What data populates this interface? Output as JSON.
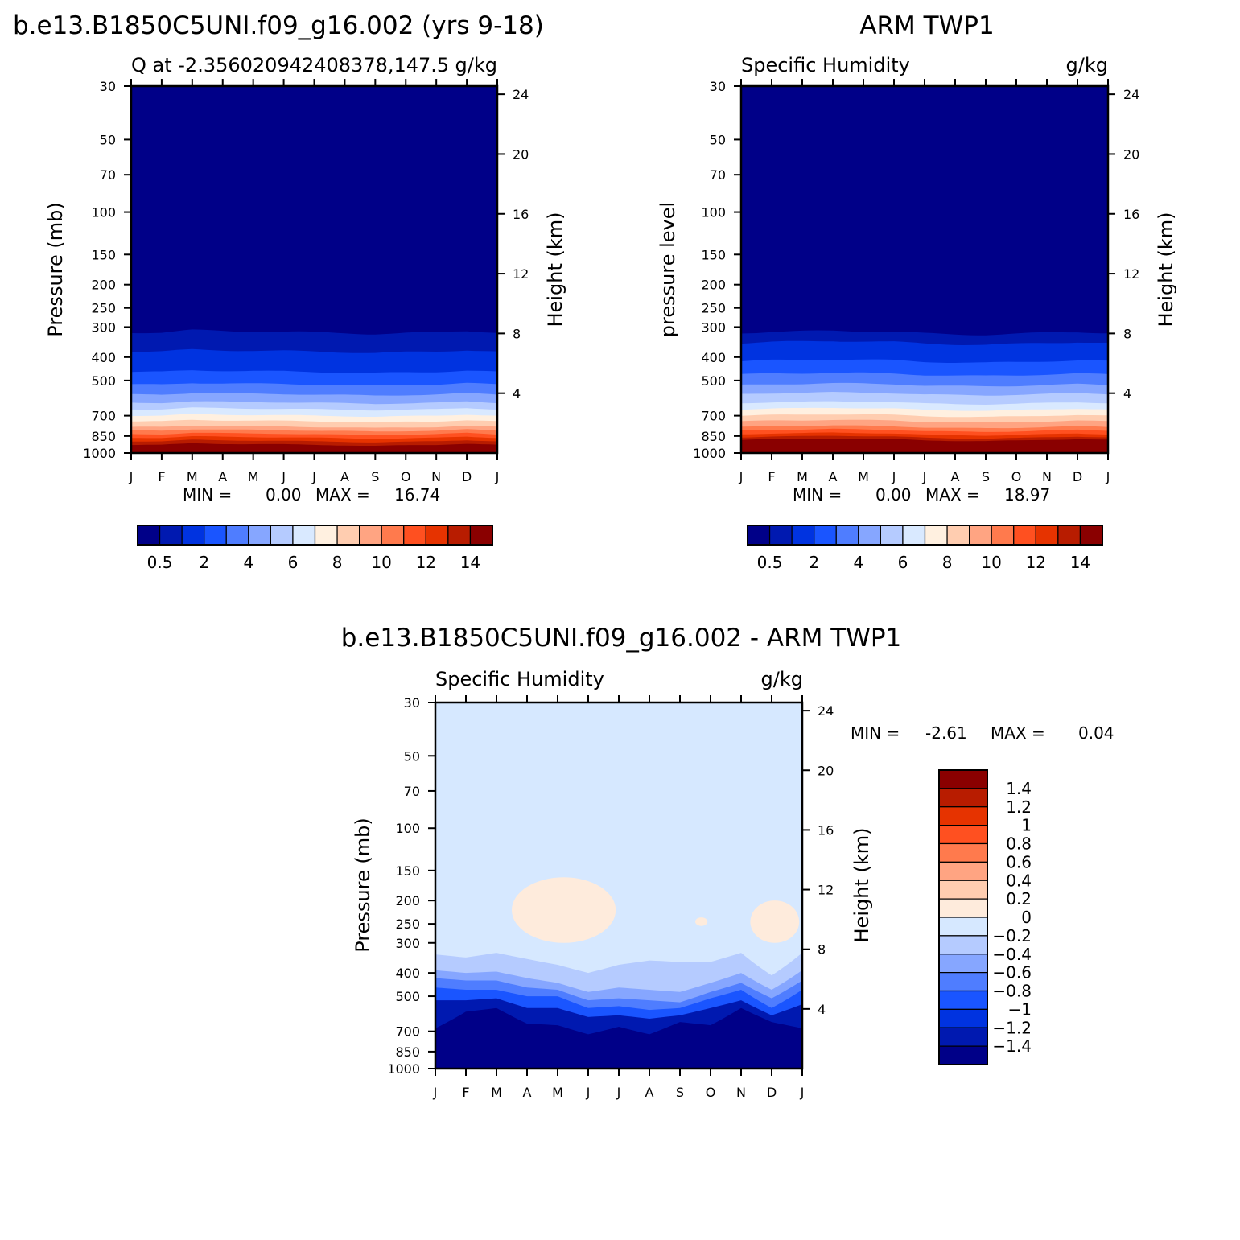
{
  "chart_data": [
    {
      "id": "p1",
      "type": "heatmap",
      "page_title": "b.e13.B1850C5UNI.f09_g16.002 (yrs 9-18)",
      "left_title": "Q at -2.356020942408378,147.5",
      "units": "g/kg",
      "ylabel": "Pressure (mb)",
      "right_ylabel": "Height (km)",
      "min_label": "MIN = ",
      "min_value": "0.00",
      "max_label": "MAX = ",
      "max_value": "16.74",
      "months": [
        "J",
        "F",
        "M",
        "A",
        "M",
        "J",
        "J",
        "A",
        "S",
        "O",
        "N",
        "D",
        "J"
      ],
      "pressure_ticks": [
        "30",
        "50",
        "70",
        "100",
        "150",
        "200",
        "250",
        "300",
        "400",
        "500",
        "700",
        "850",
        "1000"
      ],
      "height_ticks": [
        "24",
        "20",
        "16",
        "12",
        "8",
        "4"
      ],
      "top_mb": 30,
      "bottom_mb": 1000,
      "level_pressures_mb": [
        1000,
        925,
        850,
        780,
        700,
        600,
        500,
        430,
        400,
        350,
        300,
        250
      ],
      "level_values_gkg": [
        16.7,
        14.0,
        11.5,
        9.0,
        7.0,
        4.5,
        2.6,
        1.5,
        1.2,
        0.7,
        0.4,
        0.05
      ],
      "seasonal_offset_mb": [
        0,
        0,
        -6,
        -4,
        -3,
        -2,
        0,
        2,
        4,
        2,
        0,
        -5,
        0
      ],
      "levels": [
        0.1,
        0.5,
        1,
        2,
        3,
        4,
        5,
        6,
        7,
        8,
        9,
        10,
        11,
        12,
        13,
        14
      ],
      "colorbar_labels": [
        "0.5",
        "2",
        "4",
        "6",
        "8",
        "10",
        "12",
        "14"
      ]
    },
    {
      "id": "p2",
      "type": "heatmap",
      "page_title": "ARM TWP1",
      "left_title": "Specific Humidity",
      "units": "g/kg",
      "ylabel": "pressure level",
      "right_ylabel": "Height (km)",
      "min_label": "MIN = ",
      "min_value": "0.00",
      "max_label": "MAX = ",
      "max_value": "18.97",
      "months": [
        "J",
        "F",
        "M",
        "A",
        "M",
        "J",
        "J",
        "A",
        "S",
        "O",
        "N",
        "D",
        "J"
      ],
      "pressure_ticks": [
        "30",
        "50",
        "70",
        "100",
        "150",
        "200",
        "250",
        "300",
        "400",
        "500",
        "700",
        "850",
        "1000"
      ],
      "height_ticks": [
        "24",
        "20",
        "16",
        "12",
        "8",
        "4"
      ],
      "top_mb": 30,
      "bottom_mb": 1000,
      "level_pressures_mb": [
        1000,
        925,
        850,
        780,
        700,
        620,
        500,
        430,
        370,
        330,
        290
      ],
      "level_values_gkg": [
        19.0,
        16.0,
        12.5,
        10.0,
        8.0,
        6.0,
        3.5,
        2.2,
        1.3,
        0.7,
        0.05
      ],
      "seasonal_offset_mb": [
        0,
        -3,
        -4,
        -6,
        -5,
        -3,
        2,
        4,
        5,
        3,
        0,
        -3,
        0
      ],
      "levels": [
        0.1,
        0.5,
        1,
        2,
        3,
        4,
        5,
        6,
        7,
        8,
        9,
        10,
        11,
        12,
        13,
        14
      ],
      "colorbar_labels": [
        "0.5",
        "2",
        "4",
        "6",
        "8",
        "10",
        "12",
        "14"
      ]
    },
    {
      "id": "p3",
      "type": "heatmap",
      "page_title": "b.e13.B1850C5UNI.f09_g16.002 - ARM TWP1",
      "left_title": "Specific Humidity",
      "units": "g/kg",
      "ylabel": "Pressure (mb)",
      "right_ylabel": "Height (km)",
      "min_label": "MIN = ",
      "min_value": "-2.61",
      "max_label": "MAX = ",
      "max_value": "0.04",
      "months": [
        "J",
        "F",
        "M",
        "A",
        "M",
        "J",
        "J",
        "A",
        "S",
        "O",
        "N",
        "D",
        "J"
      ],
      "pressure_ticks": [
        "30",
        "50",
        "70",
        "100",
        "150",
        "200",
        "250",
        "300",
        "400",
        "500",
        "700",
        "850",
        "1000"
      ],
      "height_ticks": [
        "24",
        "20",
        "16",
        "12",
        "8",
        "4"
      ],
      "top_mb": 30,
      "bottom_mb": 1000,
      "boundaries_mb": {
        "neg_0_2_top": [
          335,
          345,
          330,
          350,
          370,
          400,
          370,
          355,
          360,
          360,
          330,
          410,
          330
        ],
        "neg_0_4_top": [
          390,
          400,
          395,
          420,
          440,
          480,
          460,
          470,
          480,
          440,
          400,
          470,
          390
        ],
        "neg_0_6_top": [
          420,
          430,
          430,
          460,
          470,
          520,
          510,
          520,
          530,
          480,
          440,
          510,
          430
        ],
        "neg_0_8_top": [
          460,
          470,
          470,
          500,
          500,
          560,
          550,
          570,
          560,
          510,
          470,
          560,
          470
        ],
        "neg_1_2_top": [
          520,
          520,
          510,
          560,
          560,
          610,
          600,
          620,
          600,
          560,
          520,
          600,
          540
        ],
        "neg_1_4_top": [
          680,
          580,
          560,
          650,
          660,
          720,
          670,
          720,
          640,
          660,
          560,
          640,
          680
        ]
      },
      "positive_patches": [
        {
          "value": "0 to 0.2",
          "months_start": 2.5,
          "months_end": 5.9,
          "top_mb": 160,
          "bottom_mb": 300
        },
        {
          "value": "0 to 0.2",
          "months_start": 8.5,
          "months_end": 8.9,
          "top_mb": 235,
          "bottom_mb": 255
        },
        {
          "value": "0 to 0.2",
          "months_start": 10.3,
          "months_end": 11.9,
          "top_mb": 200,
          "bottom_mb": 300
        }
      ],
      "levels": [
        -1.4,
        -1.2,
        -1,
        -0.8,
        -0.6,
        -0.4,
        -0.2,
        0,
        0.2,
        0.4,
        0.6,
        0.8,
        1,
        1.2,
        1.4
      ],
      "colorbar_labels": [
        "1.4",
        "1.2",
        "1",
        "0.8",
        "0.6",
        "0.4",
        "0.2",
        "0",
        "-0.2",
        "-0.4",
        "-0.6",
        "-0.8",
        "-1",
        "-1.2",
        "-1.4"
      ]
    }
  ],
  "colors": {
    "seq": [
      "#000088",
      "#0019b0",
      "#0033e0",
      "#1a55ff",
      "#4f7dff",
      "#86a6ff",
      "#b5cbff",
      "#d9e9ff",
      "#fff0e0",
      "#ffcdb0",
      "#ffa482",
      "#ff7a4d",
      "#ff5020",
      "#e63300",
      "#b81c00",
      "#8a0000"
    ],
    "div": [
      "#000088",
      "#0019b0",
      "#0033e0",
      "#1a55ff",
      "#4f7dff",
      "#86a6ff",
      "#b5cbff",
      "#d6e8ff",
      "#feebdc",
      "#ffcdb0",
      "#ffa482",
      "#ff7a4d",
      "#ff5020",
      "#e63300",
      "#b81c00",
      "#8a0000"
    ]
  }
}
